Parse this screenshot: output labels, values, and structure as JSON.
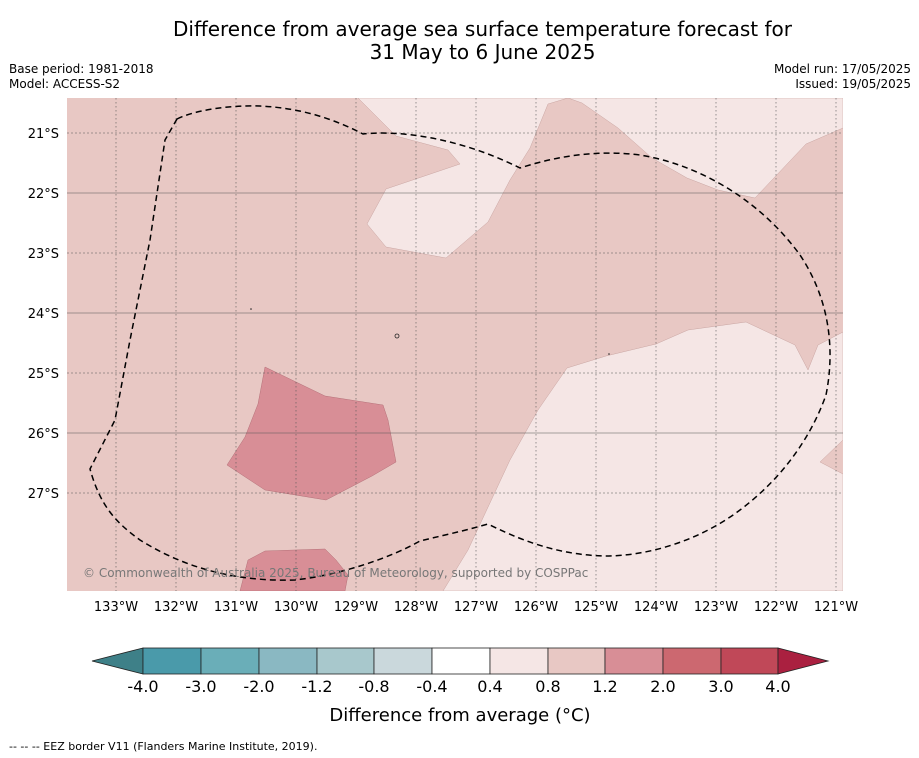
{
  "title_line1": "Difference from average sea surface temperature forecast for",
  "title_line2": "31 May to 6 June 2025",
  "base_period": "Base period: 1981-2018",
  "model": "Model: ACCESS-S2",
  "model_run": "Model run: 17/05/2025",
  "issued": "Issued: 19/05/2025",
  "copyright": "© Commonwealth of Australia 2025, Bureau of Meteorology, supported by COSPPac",
  "lat_labels": [
    "21°S",
    "22°S",
    "23°S",
    "24°S",
    "25°S",
    "26°S",
    "27°S"
  ],
  "lon_labels": [
    "133°W",
    "132°W",
    "131°W",
    "130°W",
    "129°W",
    "128°W",
    "127°W",
    "126°W",
    "125°W",
    "124°W",
    "123°W",
    "122°W",
    "121°W"
  ],
  "colorbar": {
    "ticks": [
      "-4.0",
      "-3.0",
      "-2.0",
      "-1.2",
      "-0.8",
      "-0.4",
      "0.4",
      "0.8",
      "1.2",
      "2.0",
      "3.0",
      "4.0"
    ],
    "colors": [
      "#4a9aaa",
      "#6aaeb8",
      "#8ab8c2",
      "#a8c8cc",
      "#cad8dc",
      "#ffffff",
      "#f5e6e5",
      "#e8c8c4",
      "#d88e96",
      "#cc6870",
      "#c04858"
    ],
    "under_color": "#3e8088",
    "over_color": "#aa2040",
    "label": "Difference from average (°C)"
  },
  "map_colors": {
    "light": "#f5e6e5",
    "medium": "#e8c8c4",
    "dark": "#d88e96"
  },
  "footnote": "--  --  -- EEZ border V11 (Flanders Marine Institute, 2019)."
}
